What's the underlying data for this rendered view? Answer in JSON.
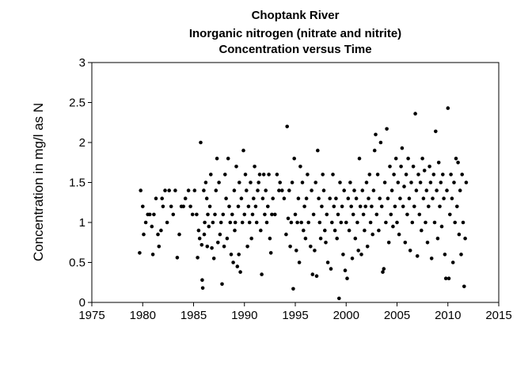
{
  "chart_data": {
    "type": "scatter",
    "title_lines": [
      "Choptank River",
      "Inorganic nitrogen (nitrate and nitrite)",
      "Concentration versus Time"
    ],
    "xlabel": "",
    "ylabel": "Concentration in mg/l as N",
    "xlim": [
      1975,
      2015
    ],
    "ylim": [
      0,
      3
    ],
    "x_ticks": [
      "1975",
      "1980",
      "1985",
      "1990",
      "1995",
      "2000",
      "2005",
      "2010",
      "2015"
    ],
    "y_ticks": [
      "0",
      "0.5",
      "1",
      "1.5",
      "2",
      "2.5",
      "3"
    ],
    "grid": false,
    "marker_color": "#000000",
    "points": [
      [
        1979.7,
        0.62
      ],
      [
        1979.8,
        1.4
      ],
      [
        1980.0,
        1.2
      ],
      [
        1980.1,
        0.85
      ],
      [
        1980.3,
        1.0
      ],
      [
        1980.5,
        1.1
      ],
      [
        1980.7,
        1.1
      ],
      [
        1980.9,
        0.95
      ],
      [
        1981.0,
        0.6
      ],
      [
        1981.1,
        1.1
      ],
      [
        1981.3,
        1.3
      ],
      [
        1981.5,
        0.85
      ],
      [
        1981.6,
        0.7
      ],
      [
        1981.8,
        0.9
      ],
      [
        1981.9,
        1.3
      ],
      [
        1982.0,
        1.2
      ],
      [
        1982.2,
        1.4
      ],
      [
        1982.4,
        1.0
      ],
      [
        1982.6,
        1.4
      ],
      [
        1982.8,
        1.2
      ],
      [
        1983.0,
        1.1
      ],
      [
        1983.2,
        1.4
      ],
      [
        1983.4,
        0.56
      ],
      [
        1983.6,
        0.85
      ],
      [
        1983.8,
        1.2
      ],
      [
        1984.0,
        1.2
      ],
      [
        1984.2,
        1.3
      ],
      [
        1984.5,
        1.4
      ],
      [
        1984.7,
        1.2
      ],
      [
        1984.9,
        1.1
      ],
      [
        1985.1,
        1.4
      ],
      [
        1985.3,
        1.1
      ],
      [
        1985.4,
        0.56
      ],
      [
        1985.5,
        0.9
      ],
      [
        1985.6,
        0.8
      ],
      [
        1985.7,
        2.0
      ],
      [
        1985.8,
        0.72
      ],
      [
        1985.85,
        0.28
      ],
      [
        1985.9,
        0.18
      ],
      [
        1986.0,
        1.4
      ],
      [
        1986.05,
        0.85
      ],
      [
        1986.1,
        1.0
      ],
      [
        1986.2,
        1.5
      ],
      [
        1986.3,
        1.3
      ],
      [
        1986.35,
        0.7
      ],
      [
        1986.4,
        1.1
      ],
      [
        1986.5,
        0.95
      ],
      [
        1986.6,
        1.2
      ],
      [
        1986.7,
        1.6
      ],
      [
        1986.8,
        0.68
      ],
      [
        1986.9,
        1.0
      ],
      [
        1987.0,
        0.55
      ],
      [
        1987.1,
        1.1
      ],
      [
        1987.2,
        1.4
      ],
      [
        1987.3,
        1.8
      ],
      [
        1987.4,
        0.75
      ],
      [
        1987.5,
        1.5
      ],
      [
        1987.6,
        0.85
      ],
      [
        1987.7,
        1.0
      ],
      [
        1987.8,
        0.23
      ],
      [
        1987.9,
        1.1
      ],
      [
        1988.0,
        0.7
      ],
      [
        1988.1,
        1.6
      ],
      [
        1988.2,
        1.3
      ],
      [
        1988.3,
        0.8
      ],
      [
        1988.4,
        1.8
      ],
      [
        1988.5,
        1.2
      ],
      [
        1988.6,
        1.0
      ],
      [
        1988.7,
        0.6
      ],
      [
        1988.8,
        1.1
      ],
      [
        1988.9,
        0.5
      ],
      [
        1989.0,
        1.4
      ],
      [
        1989.05,
        0.9
      ],
      [
        1989.1,
        1.0
      ],
      [
        1989.2,
        1.7
      ],
      [
        1989.3,
        0.45
      ],
      [
        1989.4,
        1.2
      ],
      [
        1989.45,
        0.6
      ],
      [
        1989.5,
        1.5
      ],
      [
        1989.6,
        0.38
      ],
      [
        1989.7,
        1.3
      ],
      [
        1989.8,
        1.0
      ],
      [
        1989.9,
        1.9
      ],
      [
        1990.0,
        1.1
      ],
      [
        1990.1,
        1.6
      ],
      [
        1990.2,
        1.4
      ],
      [
        1990.3,
        0.7
      ],
      [
        1990.4,
        1.2
      ],
      [
        1990.5,
        1.0
      ],
      [
        1990.6,
        1.5
      ],
      [
        1990.7,
        0.8
      ],
      [
        1990.8,
        1.1
      ],
      [
        1990.9,
        1.3
      ],
      [
        1991.0,
        1.7
      ],
      [
        1991.1,
        1.2
      ],
      [
        1991.2,
        1.0
      ],
      [
        1991.3,
        1.4
      ],
      [
        1991.4,
        1.5
      ],
      [
        1991.5,
        1.6
      ],
      [
        1991.6,
        0.9
      ],
      [
        1991.7,
        0.35
      ],
      [
        1991.8,
        1.3
      ],
      [
        1991.9,
        1.6
      ],
      [
        1992.0,
        1.1
      ],
      [
        1992.1,
        1.4
      ],
      [
        1992.2,
        1.0
      ],
      [
        1992.3,
        1.2
      ],
      [
        1992.4,
        1.6
      ],
      [
        1992.5,
        0.8
      ],
      [
        1992.6,
        0.62
      ],
      [
        1992.7,
        1.1
      ],
      [
        1992.8,
        1.3
      ],
      [
        1993.0,
        1.1
      ],
      [
        1993.2,
        1.6
      ],
      [
        1993.4,
        1.4
      ],
      [
        1993.5,
        1.5
      ],
      [
        1993.7,
        1.4
      ],
      [
        1993.9,
        1.3
      ],
      [
        1994.1,
        0.85
      ],
      [
        1994.2,
        2.2
      ],
      [
        1994.3,
        1.05
      ],
      [
        1994.4,
        1.4
      ],
      [
        1994.5,
        0.7
      ],
      [
        1994.6,
        1.0
      ],
      [
        1994.7,
        1.5
      ],
      [
        1994.8,
        0.17
      ],
      [
        1994.9,
        1.8
      ],
      [
        1995.0,
        1.1
      ],
      [
        1995.1,
        0.65
      ],
      [
        1995.2,
        1.0
      ],
      [
        1995.3,
        1.3
      ],
      [
        1995.4,
        0.5
      ],
      [
        1995.5,
        1.7
      ],
      [
        1995.6,
        1.0
      ],
      [
        1995.7,
        1.5
      ],
      [
        1995.8,
        0.9
      ],
      [
        1995.9,
        1.2
      ],
      [
        1996.0,
        0.8
      ],
      [
        1996.1,
        1.3
      ],
      [
        1996.2,
        1.6
      ],
      [
        1996.3,
        1.0
      ],
      [
        1996.5,
        0.7
      ],
      [
        1996.6,
        1.4
      ],
      [
        1996.7,
        0.35
      ],
      [
        1996.8,
        1.1
      ],
      [
        1996.9,
        0.65
      ],
      [
        1997.0,
        1.5
      ],
      [
        1997.1,
        0.33
      ],
      [
        1997.2,
        1.9
      ],
      [
        1997.3,
        1.3
      ],
      [
        1997.4,
        1.0
      ],
      [
        1997.5,
        0.8
      ],
      [
        1997.6,
        1.2
      ],
      [
        1997.7,
        1.6
      ],
      [
        1997.8,
        1.4
      ],
      [
        1997.9,
        0.9
      ],
      [
        1998.0,
        0.75
      ],
      [
        1998.1,
        1.1
      ],
      [
        1998.2,
        0.5
      ],
      [
        1998.4,
        1.3
      ],
      [
        1998.5,
        0.42
      ],
      [
        1998.6,
        1.0
      ],
      [
        1998.7,
        1.6
      ],
      [
        1998.8,
        1.2
      ],
      [
        1998.9,
        0.9
      ],
      [
        1999.0,
        1.3
      ],
      [
        1999.1,
        0.8
      ],
      [
        1999.2,
        1.1
      ],
      [
        1999.3,
        0.05
      ],
      [
        1999.4,
        1.5
      ],
      [
        1999.5,
        1.0
      ],
      [
        1999.6,
        1.2
      ],
      [
        1999.7,
        0.6
      ],
      [
        1999.8,
        1.4
      ],
      [
        1999.9,
        0.4
      ],
      [
        2000.0,
        1.0
      ],
      [
        2000.1,
        0.3
      ],
      [
        2000.2,
        1.3
      ],
      [
        2000.3,
        0.9
      ],
      [
        2000.4,
        1.5
      ],
      [
        2000.5,
        1.2
      ],
      [
        2000.6,
        0.55
      ],
      [
        2000.7,
        1.1
      ],
      [
        2000.8,
        1.4
      ],
      [
        2000.9,
        0.8
      ],
      [
        2001.0,
        1.3
      ],
      [
        2001.1,
        1.0
      ],
      [
        2001.2,
        0.65
      ],
      [
        2001.3,
        1.8
      ],
      [
        2001.4,
        1.2
      ],
      [
        2001.5,
        0.6
      ],
      [
        2001.6,
        1.4
      ],
      [
        2001.7,
        1.1
      ],
      [
        2001.8,
        0.9
      ],
      [
        2001.9,
        1.2
      ],
      [
        2002.0,
        1.5
      ],
      [
        2002.1,
        0.7
      ],
      [
        2002.2,
        1.3
      ],
      [
        2002.3,
        1.6
      ],
      [
        2002.4,
        1.0
      ],
      [
        2002.5,
        1.2
      ],
      [
        2002.6,
        0.85
      ],
      [
        2002.7,
        1.4
      ],
      [
        2002.8,
        1.9
      ],
      [
        2002.9,
        2.1
      ],
      [
        2003.0,
        1.1
      ],
      [
        2003.1,
        1.6
      ],
      [
        2003.2,
        0.9
      ],
      [
        2003.3,
        1.3
      ],
      [
        2003.4,
        2.0
      ],
      [
        2003.5,
        1.2
      ],
      [
        2003.6,
        0.38
      ],
      [
        2003.7,
        0.42
      ],
      [
        2003.8,
        1.5
      ],
      [
        2003.9,
        1.0
      ],
      [
        2004.0,
        2.17
      ],
      [
        2004.1,
        1.3
      ],
      [
        2004.2,
        0.75
      ],
      [
        2004.3,
        1.7
      ],
      [
        2004.4,
        1.1
      ],
      [
        2004.5,
        1.4
      ],
      [
        2004.6,
        0.95
      ],
      [
        2004.7,
        1.6
      ],
      [
        2004.8,
        1.2
      ],
      [
        2004.9,
        1.8
      ],
      [
        2005.0,
        1.0
      ],
      [
        2005.1,
        1.5
      ],
      [
        2005.2,
        0.85
      ],
      [
        2005.3,
        1.3
      ],
      [
        2005.4,
        1.7
      ],
      [
        2005.5,
        1.93
      ],
      [
        2005.6,
        1.2
      ],
      [
        2005.7,
        1.45
      ],
      [
        2005.8,
        0.75
      ],
      [
        2005.9,
        1.6
      ],
      [
        2006.0,
        1.1
      ],
      [
        2006.1,
        1.8
      ],
      [
        2006.2,
        1.3
      ],
      [
        2006.3,
        0.65
      ],
      [
        2006.4,
        1.5
      ],
      [
        2006.5,
        1.0
      ],
      [
        2006.6,
        1.7
      ],
      [
        2006.7,
        1.2
      ],
      [
        2006.8,
        2.36
      ],
      [
        2006.9,
        1.4
      ],
      [
        2007.0,
        0.58
      ],
      [
        2007.1,
        1.6
      ],
      [
        2007.2,
        1.1
      ],
      [
        2007.3,
        1.5
      ],
      [
        2007.4,
        0.9
      ],
      [
        2007.5,
        1.8
      ],
      [
        2007.6,
        1.3
      ],
      [
        2007.7,
        1.65
      ],
      [
        2007.8,
        1.0
      ],
      [
        2007.9,
        1.4
      ],
      [
        2008.0,
        0.75
      ],
      [
        2008.1,
        1.2
      ],
      [
        2008.2,
        1.7
      ],
      [
        2008.3,
        1.5
      ],
      [
        2008.4,
        0.55
      ],
      [
        2008.5,
        1.3
      ],
      [
        2008.6,
        1.6
      ],
      [
        2008.7,
        1.0
      ],
      [
        2008.8,
        2.14
      ],
      [
        2008.9,
        1.4
      ],
      [
        2009.0,
        0.8
      ],
      [
        2009.1,
        1.75
      ],
      [
        2009.2,
        1.2
      ],
      [
        2009.3,
        1.5
      ],
      [
        2009.4,
        0.95
      ],
      [
        2009.5,
        1.6
      ],
      [
        2009.6,
        1.3
      ],
      [
        2009.7,
        0.6
      ],
      [
        2009.8,
        0.3
      ],
      [
        2009.9,
        1.4
      ],
      [
        2010.0,
        2.43
      ],
      [
        2010.1,
        0.3
      ],
      [
        2010.2,
        1.1
      ],
      [
        2010.3,
        1.6
      ],
      [
        2010.4,
        1.3
      ],
      [
        2010.5,
        0.5
      ],
      [
        2010.6,
        1.5
      ],
      [
        2010.7,
        1.0
      ],
      [
        2010.8,
        1.8
      ],
      [
        2010.9,
        1.2
      ],
      [
        2011.0,
        1.75
      ],
      [
        2011.1,
        0.85
      ],
      [
        2011.2,
        1.4
      ],
      [
        2011.3,
        0.6
      ],
      [
        2011.4,
        1.6
      ],
      [
        2011.5,
        1.0
      ],
      [
        2011.6,
        0.2
      ],
      [
        2011.7,
        0.8
      ],
      [
        2011.8,
        1.5
      ]
    ]
  }
}
